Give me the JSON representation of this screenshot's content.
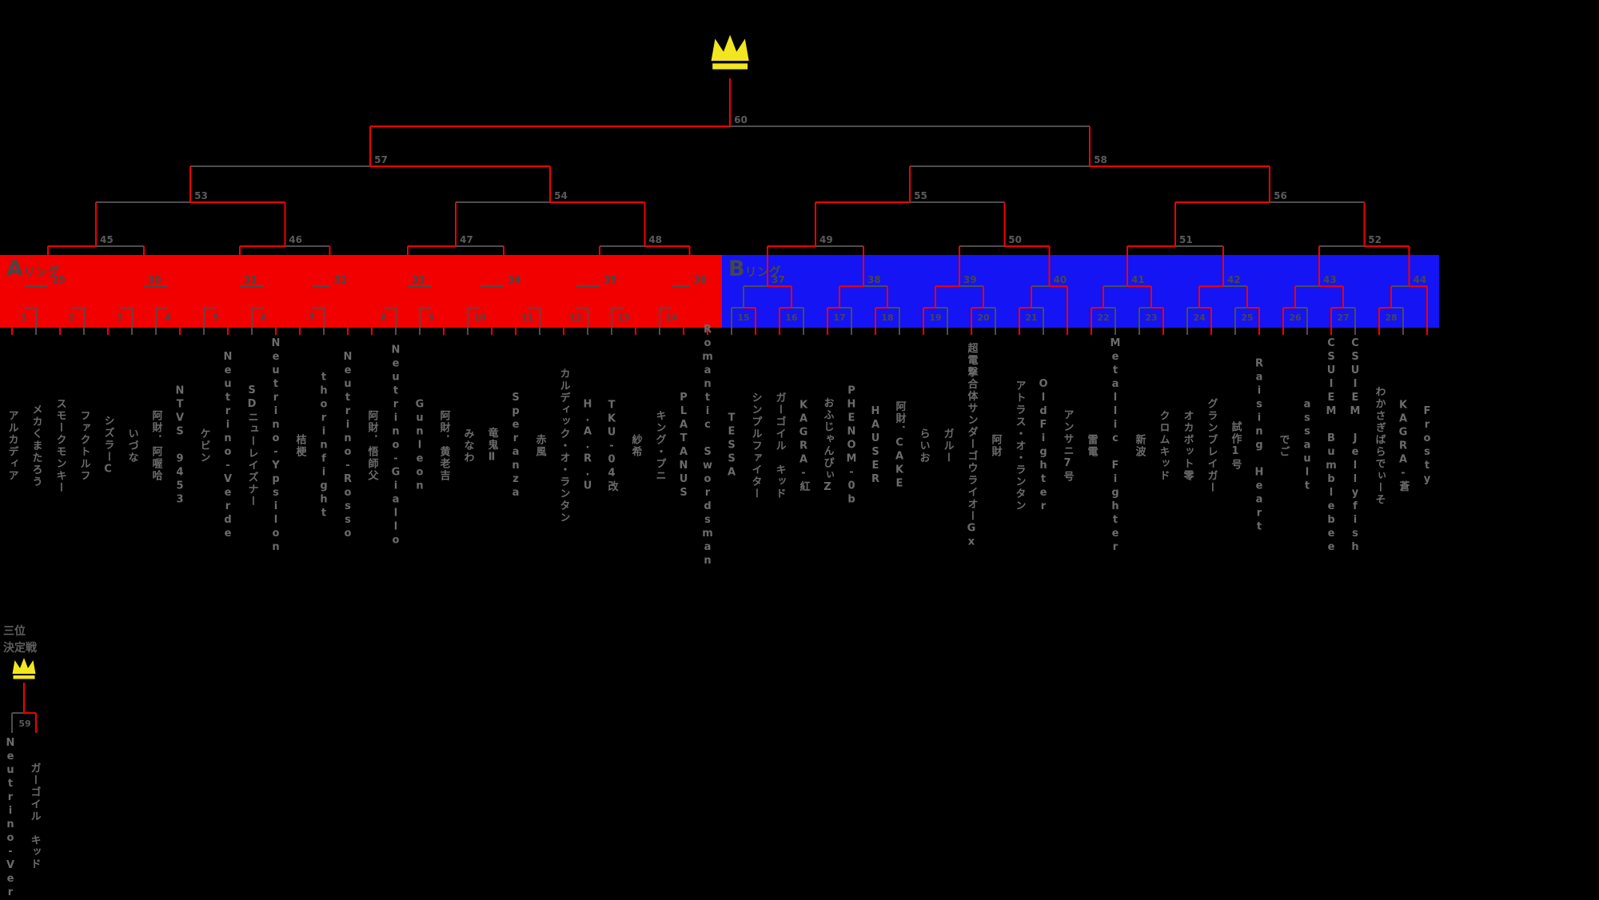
{
  "colors": {
    "background": "#000000",
    "ring_a_band": "#f20000",
    "ring_b_band": "#1414f5",
    "winner_line_red": "#f20000",
    "loser_line_gray": "#4d4d4d",
    "crown_yellow": "#f2e620",
    "name_text": "#6b6b6b",
    "number_text_in_band": "#474747",
    "number_text_on_black": "#5a5a5a"
  },
  "rings": [
    {
      "label_big": "A",
      "label_small": "リング"
    },
    {
      "label_big": "B",
      "label_small": "リング"
    }
  ],
  "icons": [
    {
      "name": "champion-crown"
    },
    {
      "name": "third-place-crown"
    }
  ],
  "participants": [
    "アルカディア",
    "メカくまたろう",
    "スモークモンキー",
    "ファクトルフ",
    "シズラーC",
    "いづな",
    "阿財．阿喔哈",
    "NTVS 9453",
    "ケビン",
    "Neutrino-Verde",
    "SDニューレイズナー",
    "Neutrino-Ypsilon",
    "桔梗",
    "thorinfight",
    "Neutrino-Rosso",
    "阿財．悟師父",
    "Neutrino-Giallo",
    "Gunleon",
    "阿財．黄老吉",
    "みなわ",
    "竜鬼Ⅱ",
    "Speranza",
    "赤風",
    "カルディック・オ・ランタン",
    "H.A.R.U",
    "TKU-04改",
    "紗希",
    "キング・プニ",
    "PLATANUS",
    "Romantic Swordsman",
    "TESSA",
    "シンプルファイター",
    "ガーゴイル　キッド",
    "KAGRA-紅",
    "おふじゃんぴぃZ",
    "PHENOM-0b",
    "HAUSER",
    "阿財．CAKE",
    "らいお",
    "ガルー",
    "超電撃合体サンダーゴウライオーGx",
    "阿財",
    "アトラス・オ・ランタン",
    "OldFighter",
    "アンサニ7号",
    "雷電",
    "Metallic Fighter",
    "新波",
    "クロムキッド",
    "オカボット零",
    "グランブレイガー",
    "試作1号",
    "Raising Heart",
    "でご",
    "assault",
    "CSUIEM Bumblebee",
    "CSUIEM Jellyfish",
    "わかさぎばらでぃーそ",
    "KAGRA-蒼",
    "Frosty"
  ],
  "bye_indices": [
    14,
    29,
    44,
    59
  ],
  "withdrawn_after_match": [
    15
  ],
  "matches": [
    {
      "no": 1,
      "winner": "L"
    },
    {
      "no": 2,
      "winner": "L"
    },
    {
      "no": 3,
      "winner": "L"
    },
    {
      "no": 4,
      "winner": "R"
    },
    {
      "no": 5,
      "winner": "R"
    },
    {
      "no": 6,
      "winner": "R"
    },
    {
      "no": 7,
      "winner": "L"
    },
    {
      "no": 8,
      "winner": "L"
    },
    {
      "no": 9,
      "winner": "R"
    },
    {
      "no": 10,
      "winner": "R"
    },
    {
      "no": 11,
      "winner": "L"
    },
    {
      "no": 12,
      "winner": "L"
    },
    {
      "no": 13,
      "winner": "R"
    },
    {
      "no": 14,
      "winner": "R"
    },
    {
      "no": 15,
      "winner": "R"
    },
    {
      "no": 16,
      "winner": "L"
    },
    {
      "no": 17,
      "winner": "L"
    },
    {
      "no": 18,
      "winner": "L"
    },
    {
      "no": 19,
      "winner": "L"
    },
    {
      "no": 20,
      "winner": "L"
    },
    {
      "no": 21,
      "winner": "L"
    },
    {
      "no": 22,
      "winner": "L"
    },
    {
      "no": 23,
      "winner": "R"
    },
    {
      "no": 24,
      "winner": "R"
    },
    {
      "no": 25,
      "winner": "R"
    },
    {
      "no": 26,
      "winner": "L"
    },
    {
      "no": 27,
      "winner": "L"
    },
    {
      "no": 28,
      "winner": "L"
    },
    {
      "no": 29,
      "winner": "R"
    },
    {
      "no": 30,
      "winner": "L"
    },
    {
      "no": 31,
      "winner": "L"
    },
    {
      "no": 32,
      "winner": "R"
    },
    {
      "no": 33,
      "winner": "L"
    },
    {
      "no": 34,
      "winner": "R"
    },
    {
      "no": 35,
      "winner": "R"
    },
    {
      "no": 36,
      "winner": "R"
    },
    {
      "no": 37,
      "winner": "R"
    },
    {
      "no": 38,
      "winner": "L"
    },
    {
      "no": 39,
      "winner": "L"
    },
    {
      "no": 40,
      "winner": "R"
    },
    {
      "no": 41,
      "winner": "R"
    },
    {
      "no": 42,
      "winner": "L"
    },
    {
      "no": 43,
      "winner": "R"
    },
    {
      "no": 44,
      "winner": "R"
    },
    {
      "no": 45,
      "winner": "L"
    },
    {
      "no": 46,
      "winner": "L"
    },
    {
      "no": 47,
      "winner": "L"
    },
    {
      "no": 48,
      "winner": "R"
    },
    {
      "no": 49,
      "winner": "L"
    },
    {
      "no": 50,
      "winner": "R"
    },
    {
      "no": 51,
      "winner": "L"
    },
    {
      "no": 52,
      "winner": "R"
    },
    {
      "no": 53,
      "winner": "R"
    },
    {
      "no": 54,
      "winner": "R"
    },
    {
      "no": 55,
      "winner": "L"
    },
    {
      "no": 56,
      "winner": "L"
    },
    {
      "no": 57,
      "winner": "R"
    },
    {
      "no": 58,
      "winner": "R"
    },
    {
      "no": 60,
      "winner": "L"
    }
  ],
  "third_place": {
    "title_line1": "三位",
    "title_line2": "決定戦",
    "match_number": "59",
    "left_name": "Neutrino-Verde",
    "right_name": "ガーゴイル　キッド",
    "winner": "R"
  }
}
